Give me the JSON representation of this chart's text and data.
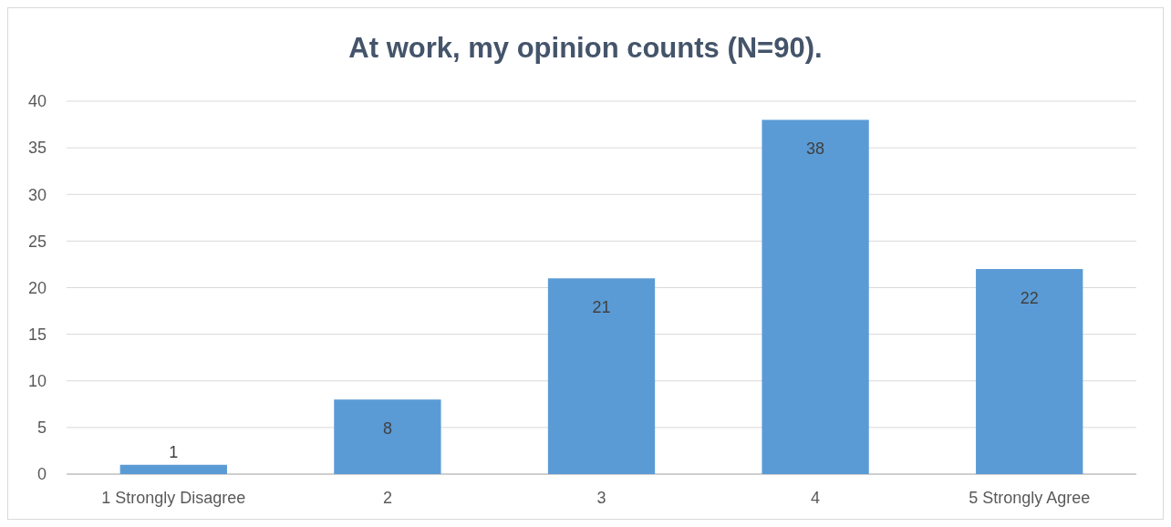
{
  "chart_data": {
    "type": "bar",
    "title": "At work, my opinion counts (N=90).",
    "categories": [
      "1 Strongly Disagree",
      "2",
      "3",
      "4",
      "5 Strongly Agree"
    ],
    "values": [
      1,
      8,
      21,
      38,
      22
    ],
    "color": "#5b9bd5",
    "ylim": [
      0,
      40
    ],
    "yticks": [
      0,
      5,
      10,
      15,
      20,
      25,
      30,
      35,
      40
    ],
    "grid": "y",
    "data_labels": true
  }
}
